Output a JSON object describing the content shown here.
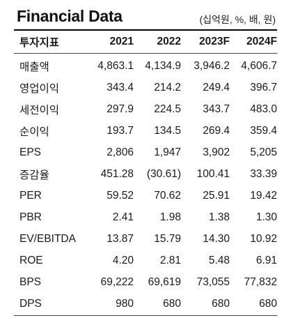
{
  "title": "Financial Data",
  "unit_note": "(십억원, %, 배, 원)",
  "header": {
    "label": "투자지표",
    "years": [
      "2021",
      "2022",
      "2023F",
      "2024F"
    ]
  },
  "rows": [
    {
      "label": "매출액",
      "values": [
        "4,863.1",
        "4,134.9",
        "3,946.2",
        "4,606.7"
      ]
    },
    {
      "label": "영업이익",
      "values": [
        "343.4",
        "214.2",
        "249.4",
        "396.7"
      ]
    },
    {
      "label": "세전이익",
      "values": [
        "297.9",
        "224.5",
        "343.7",
        "483.0"
      ]
    },
    {
      "label": "순이익",
      "values": [
        "193.7",
        "134.5",
        "269.4",
        "359.4"
      ]
    },
    {
      "label": "EPS",
      "values": [
        "2,806",
        "1,947",
        "3,902",
        "5,205"
      ]
    },
    {
      "label": "증감율",
      "values": [
        "451.28",
        "(30.61)",
        "100.41",
        "33.39"
      ]
    },
    {
      "label": "PER",
      "values": [
        "59.52",
        "70.62",
        "25.91",
        "19.42"
      ]
    },
    {
      "label": "PBR",
      "values": [
        "2.41",
        "1.98",
        "1.38",
        "1.30"
      ]
    },
    {
      "label": "EV/EBITDA",
      "values": [
        "13.87",
        "15.79",
        "14.30",
        "10.92"
      ]
    },
    {
      "label": "ROE",
      "values": [
        "4.20",
        "2.81",
        "5.48",
        "6.91"
      ]
    },
    {
      "label": "BPS",
      "values": [
        "69,222",
        "69,619",
        "73,055",
        "77,832"
      ]
    },
    {
      "label": "DPS",
      "values": [
        "980",
        "680",
        "680",
        "680"
      ]
    }
  ]
}
